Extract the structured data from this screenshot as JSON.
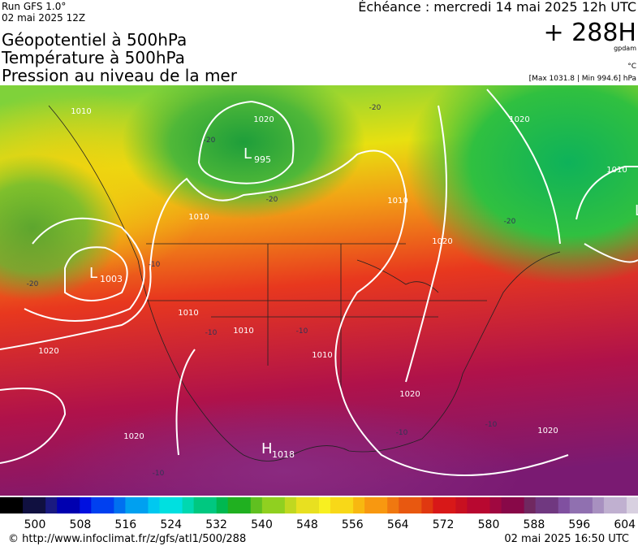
{
  "header": {
    "run": "Run GFS 1.0°",
    "run_date": "02 mai 2025 12Z",
    "titles": [
      "Géopotentiel à 500hPa",
      "Température à 500hPa",
      "Pression au niveau de la mer"
    ],
    "echeance": "Échéance : mercredi 14 mai 2025 12h UTC",
    "lead": "+ 288H",
    "unit_geo": "gpdam",
    "unit_temp": "°C",
    "pressure_range": "[Max 1031.8 | Min 994.6] hPa"
  },
  "map": {
    "centers": [
      {
        "letter": "L",
        "value": 995
      },
      {
        "letter": "L",
        "value": 1003
      },
      {
        "letter": "H",
        "value": 1018
      },
      {
        "letter": "L",
        "value": null
      }
    ],
    "isobar_labels": [
      1010,
      1020,
      1010,
      1020,
      1010,
      1020,
      1010,
      1010,
      1010,
      1020,
      1020,
      1020,
      1010,
      1020
    ],
    "isotherm_labels": [
      -20,
      -20,
      -20,
      -20,
      -20,
      -10,
      -10,
      -10,
      -10,
      -10,
      -10
    ]
  },
  "colorbar": {
    "labels": [
      500,
      508,
      516,
      524,
      532,
      540,
      548,
      556,
      564,
      572,
      580,
      588,
      596,
      604
    ]
  },
  "footer": {
    "url": "© http://www.infoclimat.fr/z/gfs/atl1/500/288",
    "timestamp": "02 mai 2025 16:50 UTC"
  }
}
